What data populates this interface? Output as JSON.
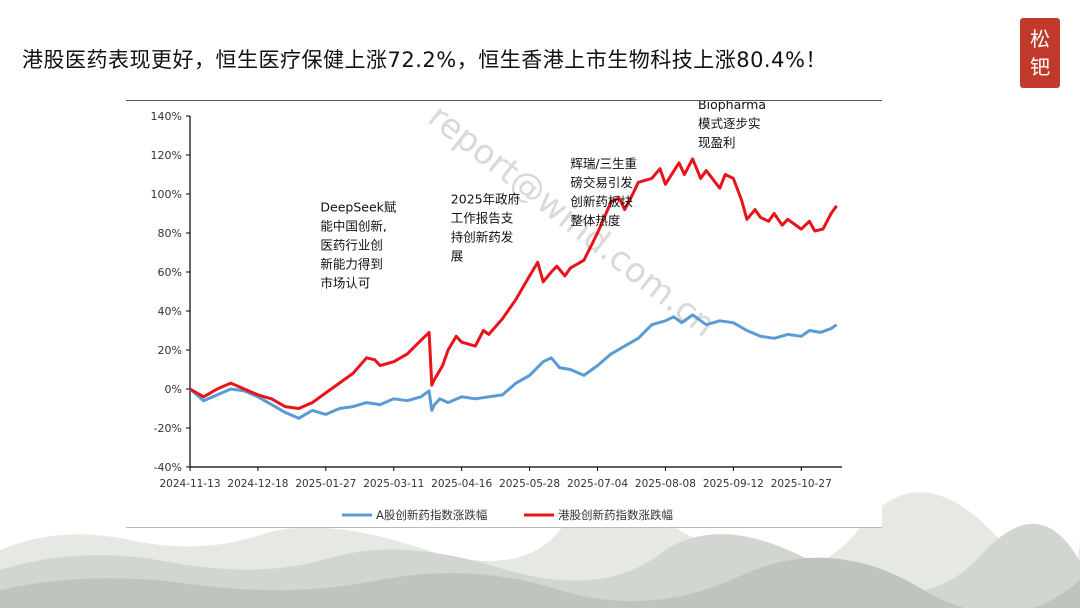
{
  "slide": {
    "title": "港股医药表现更好，恒生医疗保健上涨72.2%，恒生香港上市生物科技上涨80.4%！",
    "seal_chars": [
      "松",
      "钯"
    ]
  },
  "colors": {
    "a_share": "#5b9bd5",
    "hk": "#e8131b",
    "seal": "#c0392b"
  },
  "chart_data": {
    "type": "line",
    "title": "",
    "xlabel": "",
    "ylabel": "",
    "ylim": [
      -40,
      140
    ],
    "y_ticks": [
      -40,
      -20,
      0,
      20,
      40,
      60,
      80,
      100,
      120,
      140
    ],
    "y_tick_labels": [
      "-40%",
      "-20%",
      "0%",
      "20%",
      "40%",
      "60%",
      "80%",
      "100%",
      "120%",
      "140%"
    ],
    "x_tick_labels": [
      "2024-11-13",
      "2024-12-18",
      "2025-01-27",
      "2025-03-11",
      "2025-04-16",
      "2025-05-28",
      "2025-07-04",
      "2025-08-08",
      "2025-09-12",
      "2025-10-27"
    ],
    "x_index_range": [
      0,
      240
    ],
    "x_tick_index": [
      0,
      25,
      50,
      75,
      100,
      125,
      150,
      175,
      200,
      225
    ],
    "legend_position": "bottom",
    "series": [
      {
        "name": "A股创新药指数涨跌幅",
        "color": "#5b9bd5",
        "x": [
          0,
          5,
          10,
          15,
          20,
          25,
          30,
          35,
          40,
          45,
          50,
          55,
          60,
          65,
          70,
          75,
          80,
          85,
          88,
          89,
          90,
          92,
          95,
          100,
          105,
          110,
          115,
          120,
          125,
          130,
          133,
          136,
          140,
          145,
          150,
          155,
          160,
          165,
          170,
          175,
          178,
          181,
          185,
          190,
          195,
          200,
          205,
          210,
          215,
          220,
          225,
          228,
          232,
          236,
          238
        ],
        "values": [
          0,
          -6,
          -3,
          0,
          -1,
          -4,
          -8,
          -12,
          -15,
          -11,
          -13,
          -10,
          -9,
          -7,
          -8,
          -5,
          -6,
          -4,
          -1,
          -11,
          -8,
          -5,
          -7,
          -4,
          -5,
          -4,
          -3,
          3,
          7,
          14,
          16,
          11,
          10,
          7,
          12,
          18,
          22,
          26,
          33,
          35,
          37,
          34,
          38,
          33,
          35,
          34,
          30,
          27,
          26,
          28,
          27,
          30,
          29,
          31,
          33
        ]
      },
      {
        "name": "港股创新药指数涨跌幅",
        "color": "#e8131b",
        "x": [
          0,
          5,
          10,
          15,
          20,
          25,
          30,
          35,
          40,
          45,
          50,
          55,
          60,
          65,
          68,
          70,
          75,
          80,
          85,
          88,
          89,
          90,
          93,
          95,
          98,
          100,
          105,
          108,
          110,
          115,
          120,
          125,
          128,
          130,
          133,
          135,
          138,
          140,
          145,
          150,
          155,
          158,
          160,
          163,
          165,
          170,
          173,
          175,
          180,
          182,
          185,
          188,
          190,
          195,
          197,
          200,
          203,
          205,
          208,
          210,
          213,
          215,
          218,
          220,
          225,
          228,
          230,
          233,
          236,
          238
        ],
        "values": [
          0,
          -4,
          0,
          3,
          0,
          -3,
          -5,
          -9,
          -10,
          -7,
          -2,
          3,
          8,
          16,
          15,
          12,
          14,
          18,
          25,
          29,
          2,
          5,
          12,
          20,
          27,
          24,
          22,
          30,
          28,
          36,
          46,
          58,
          65,
          55,
          60,
          63,
          58,
          62,
          66,
          80,
          96,
          98,
          92,
          100,
          106,
          108,
          113,
          105,
          116,
          110,
          118,
          108,
          112,
          103,
          110,
          108,
          97,
          87,
          92,
          88,
          86,
          90,
          84,
          87,
          82,
          86,
          81,
          82,
          90,
          94
        ]
      }
    ],
    "annotations": [
      {
        "lines": [
          "DeepSeek赋",
          "能中国创新,",
          "医药行业创",
          "新能力得到",
          "市场认可"
        ],
        "x": 48,
        "y": 52
      },
      {
        "lines": [
          "2025年政府",
          "工作报告支",
          "持创新药发",
          "展"
        ],
        "x": 96,
        "y": 66
      },
      {
        "lines": [
          "辉瑞/三生重",
          "磅交易引发",
          "创新药板块",
          "整体热度"
        ],
        "x": 140,
        "y": 84
      },
      {
        "lines": [
          "Biopharma",
          "模式逐步实",
          "现盈利"
        ],
        "x": 187,
        "y": 124
      }
    ],
    "watermark": "report@wind.com.cn"
  }
}
